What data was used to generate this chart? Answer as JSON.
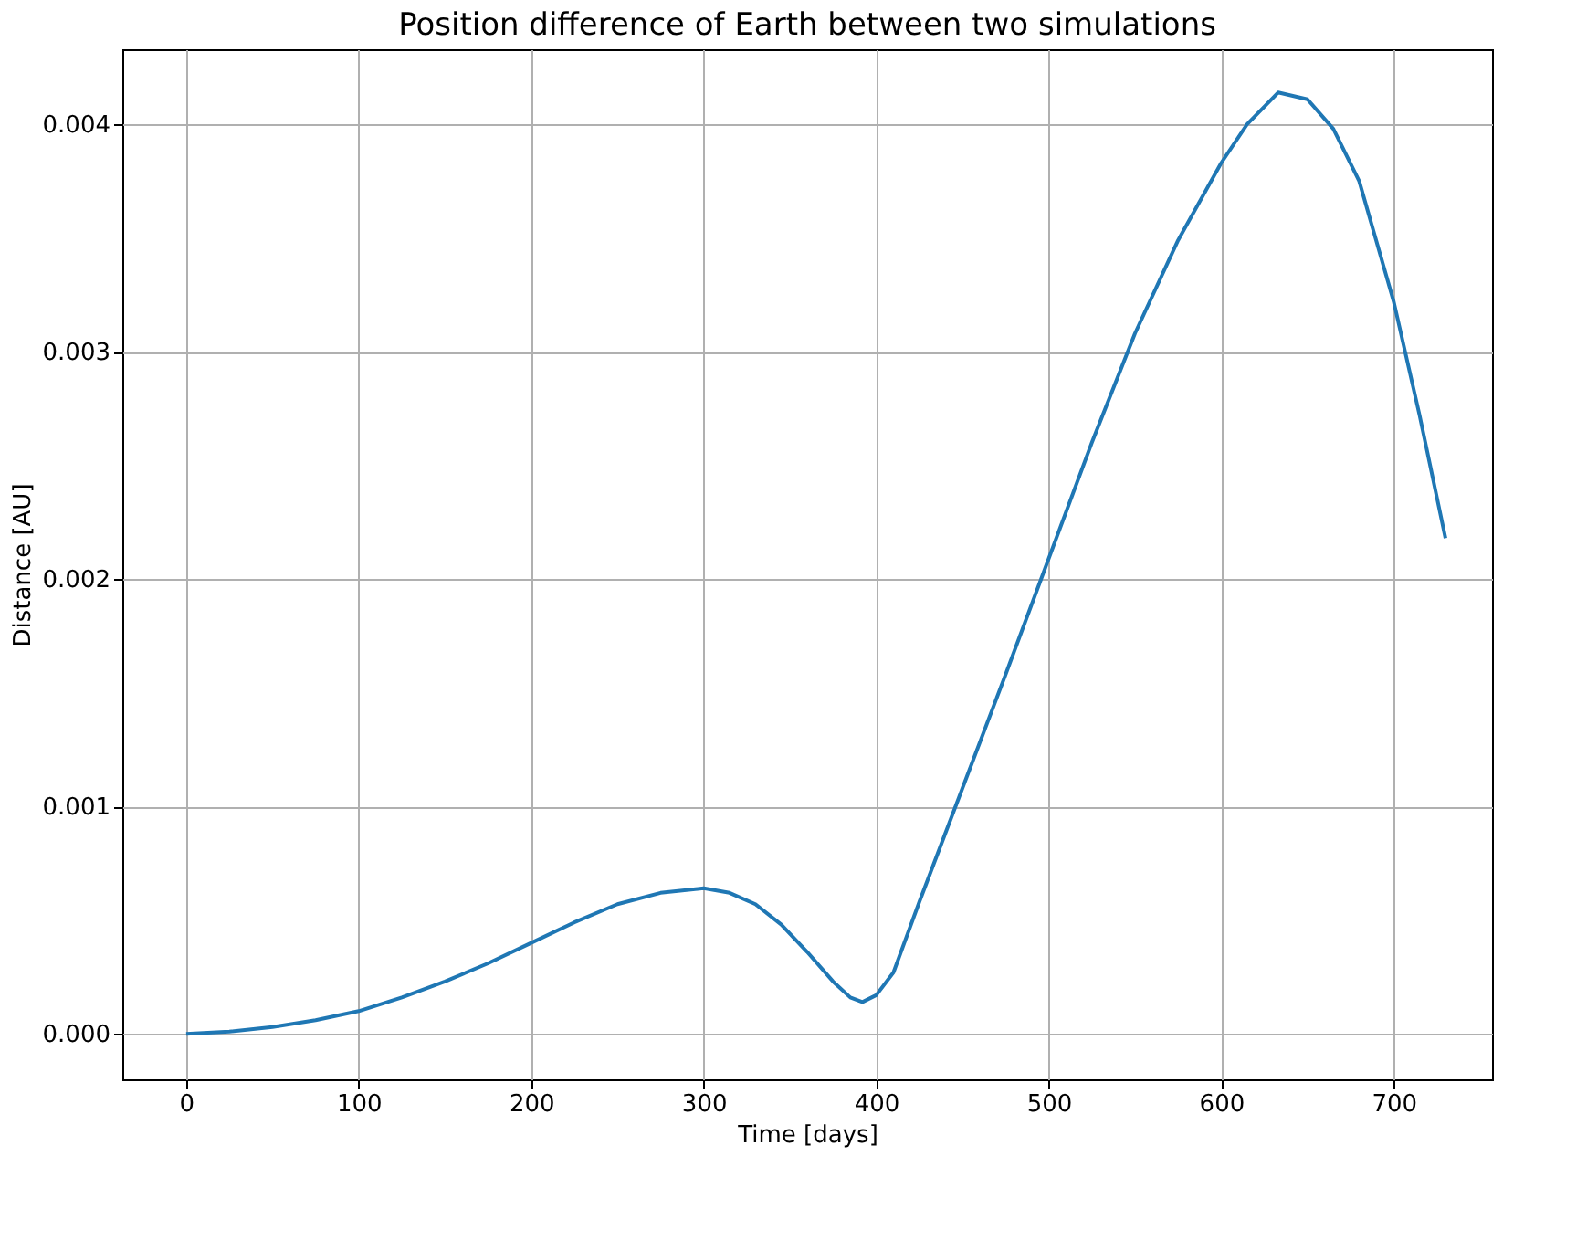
{
  "chart_data": {
    "type": "line",
    "title": "Position difference of Earth between two simulations",
    "xlabel": "Time [days]",
    "ylabel": "Distance [AU]",
    "x": [
      0,
      25,
      50,
      75,
      100,
      125,
      150,
      175,
      200,
      225,
      250,
      275,
      300,
      315,
      330,
      345,
      360,
      375,
      385,
      392,
      400,
      410,
      425,
      450,
      475,
      500,
      525,
      550,
      575,
      600,
      615,
      633,
      650,
      665,
      680,
      700,
      715,
      730
    ],
    "series": [
      {
        "color": "#1f77b4",
        "values": [
          0,
          1e-05,
          3e-05,
          6e-05,
          0.0001,
          0.00016,
          0.00023,
          0.00031,
          0.0004,
          0.00049,
          0.00057,
          0.00062,
          0.00064,
          0.00062,
          0.00057,
          0.00048,
          0.00036,
          0.00023,
          0.00016,
          0.00014,
          0.00017,
          0.00027,
          0.00058,
          0.00108,
          0.00158,
          0.00209,
          0.0026,
          0.00308,
          0.00349,
          0.00383,
          0.004,
          0.00414,
          0.00411,
          0.00398,
          0.00375,
          0.00322,
          0.00272,
          0.00218
        ]
      }
    ],
    "xlim": [
      -37,
      757
    ],
    "ylim": [
      -0.0002,
      0.00433
    ],
    "xticks": [
      0,
      100,
      200,
      300,
      400,
      500,
      600,
      700
    ],
    "yticks": [
      {
        "value": 0,
        "label": "0.000"
      },
      {
        "value": 0.001,
        "label": "0.001"
      },
      {
        "value": 0.002,
        "label": "0.002"
      },
      {
        "value": 0.003,
        "label": "0.003"
      },
      {
        "value": 0.004,
        "label": "0.004"
      }
    ],
    "grid": true,
    "line_style": "solid",
    "marker": "none"
  }
}
